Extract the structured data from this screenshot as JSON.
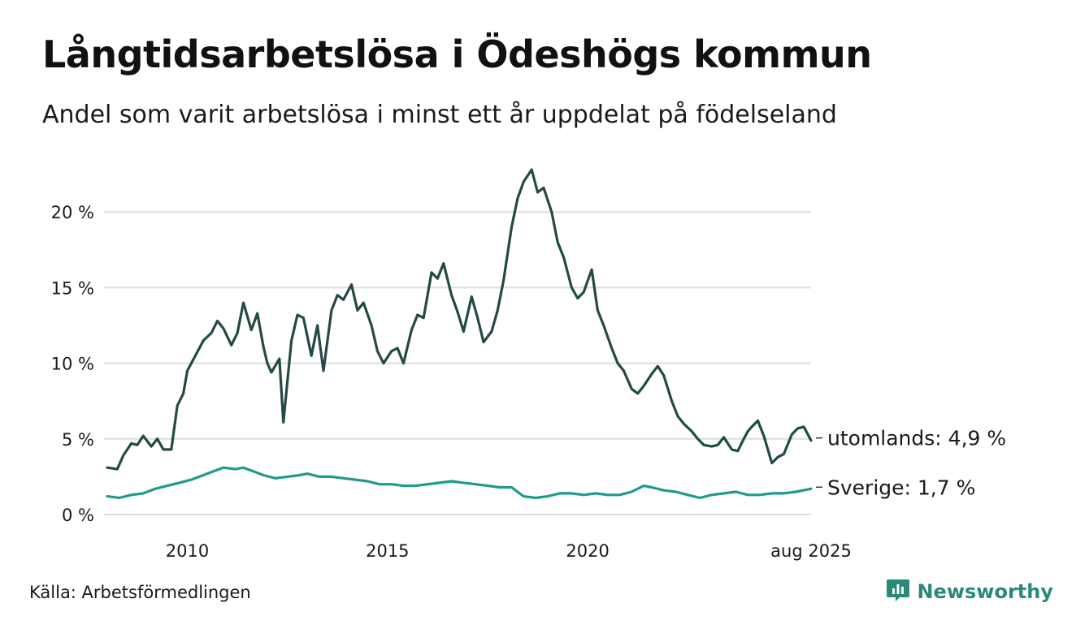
{
  "title": "Långtidsarbetslösa i Ödeshögs kommun",
  "subtitle": "Andel som varit arbetslösa i minst ett år uppdelat på födelseland",
  "source": "Källa: Arbetsförmedlingen",
  "brand": {
    "name": "Newsworthy",
    "icon": "newsworthy-logo-icon"
  },
  "colors": {
    "utomlands": "#234a45",
    "sverige": "#1f9a8c",
    "grid": "#dddddd"
  },
  "chart_data": {
    "type": "line",
    "title": "Långtidsarbetslösa i Ödeshögs kommun",
    "xlabel": "",
    "ylabel": "",
    "ylim": [
      0,
      23.5
    ],
    "xlim": [
      2008.0,
      2025.58
    ],
    "y_ticks": [
      {
        "value": 0,
        "label": "0 %"
      },
      {
        "value": 5,
        "label": "5 %"
      },
      {
        "value": 10,
        "label": "10 %"
      },
      {
        "value": 15,
        "label": "15 %"
      },
      {
        "value": 20,
        "label": "20 %"
      }
    ],
    "x_ticks": [
      {
        "value": 2010,
        "label": "2010"
      },
      {
        "value": 2015,
        "label": "2015"
      },
      {
        "value": 2020,
        "label": "2020"
      },
      {
        "value": 2025.58,
        "label": "aug 2025"
      }
    ],
    "grid": true,
    "series": [
      {
        "key": "utomlands",
        "end_label": "utomlands: 4,9 %",
        "x": [
          2008.0,
          2008.25,
          2008.4,
          2008.6,
          2008.75,
          2008.9,
          2009.1,
          2009.25,
          2009.4,
          2009.6,
          2009.75,
          2009.9,
          2010.0,
          2010.2,
          2010.4,
          2010.6,
          2010.75,
          2010.9,
          2011.1,
          2011.25,
          2011.4,
          2011.6,
          2011.75,
          2011.9,
          2012.0,
          2012.1,
          2012.3,
          2012.4,
          2012.6,
          2012.75,
          2012.9,
          2013.1,
          2013.25,
          2013.4,
          2013.6,
          2013.75,
          2013.9,
          2014.1,
          2014.25,
          2014.4,
          2014.6,
          2014.75,
          2014.9,
          2015.1,
          2015.25,
          2015.4,
          2015.6,
          2015.75,
          2015.9,
          2016.1,
          2016.25,
          2016.4,
          2016.6,
          2016.75,
          2016.9,
          2017.1,
          2017.25,
          2017.4,
          2017.6,
          2017.75,
          2017.9,
          2018.1,
          2018.25,
          2018.4,
          2018.6,
          2018.75,
          2018.9,
          2019.1,
          2019.25,
          2019.4,
          2019.6,
          2019.75,
          2019.9,
          2020.1,
          2020.25,
          2020.4,
          2020.6,
          2020.75,
          2020.9,
          2021.1,
          2021.25,
          2021.4,
          2021.6,
          2021.75,
          2021.9,
          2022.1,
          2022.25,
          2022.4,
          2022.6,
          2022.75,
          2022.9,
          2023.1,
          2023.25,
          2023.4,
          2023.6,
          2023.75,
          2023.9,
          2024.0,
          2024.1,
          2024.25,
          2024.4,
          2024.6,
          2024.75,
          2024.9,
          2025.1,
          2025.25,
          2025.4,
          2025.58
        ],
        "values": [
          3.1,
          3.0,
          3.9,
          4.7,
          4.6,
          5.2,
          4.5,
          5.0,
          4.3,
          4.3,
          7.2,
          8.0,
          9.5,
          10.5,
          11.5,
          12.0,
          12.8,
          12.3,
          11.2,
          12.0,
          14.0,
          12.2,
          13.3,
          11.1,
          10.0,
          9.4,
          10.3,
          6.1,
          11.5,
          13.2,
          13.0,
          10.5,
          12.5,
          9.5,
          13.5,
          14.5,
          14.2,
          15.2,
          13.5,
          14.0,
          12.5,
          10.8,
          10.0,
          10.8,
          11.0,
          10.0,
          12.2,
          13.2,
          13.0,
          16.0,
          15.6,
          16.6,
          14.5,
          13.4,
          12.1,
          14.4,
          13.0,
          11.4,
          12.1,
          13.5,
          15.5,
          19.0,
          20.9,
          22.0,
          22.8,
          21.3,
          21.6,
          20.0,
          18.0,
          17.0,
          15.0,
          14.3,
          14.7,
          16.2,
          13.5,
          12.5,
          11.0,
          10.0,
          9.5,
          8.3,
          8.0,
          8.5,
          9.3,
          9.8,
          9.2,
          7.5,
          6.5,
          6.0,
          5.5,
          5.0,
          4.6,
          4.5,
          4.6,
          5.1,
          4.3,
          4.2,
          5.0,
          5.5,
          5.8,
          6.2,
          5.2,
          3.4,
          3.8,
          4.0,
          5.3,
          5.7,
          5.8,
          4.9
        ]
      },
      {
        "key": "sverige",
        "end_label": "Sverige: 1,7 %",
        "x": [
          2008.0,
          2008.3,
          2008.6,
          2008.9,
          2009.2,
          2009.5,
          2009.8,
          2010.1,
          2010.4,
          2010.7,
          2010.9,
          2011.2,
          2011.4,
          2011.7,
          2011.9,
          2012.2,
          2012.5,
          2012.8,
          2013.0,
          2013.3,
          2013.6,
          2013.9,
          2014.2,
          2014.5,
          2014.8,
          2015.1,
          2015.4,
          2015.7,
          2016.0,
          2016.3,
          2016.6,
          2016.9,
          2017.2,
          2017.5,
          2017.8,
          2018.1,
          2018.4,
          2018.7,
          2019.0,
          2019.3,
          2019.6,
          2019.9,
          2020.2,
          2020.5,
          2020.8,
          2021.1,
          2021.4,
          2021.6,
          2021.9,
          2022.2,
          2022.5,
          2022.8,
          2023.1,
          2023.4,
          2023.7,
          2024.0,
          2024.3,
          2024.6,
          2024.9,
          2025.2,
          2025.58
        ],
        "values": [
          1.2,
          1.1,
          1.3,
          1.4,
          1.7,
          1.9,
          2.1,
          2.3,
          2.6,
          2.9,
          3.1,
          3.0,
          3.1,
          2.8,
          2.6,
          2.4,
          2.5,
          2.6,
          2.7,
          2.5,
          2.5,
          2.4,
          2.3,
          2.2,
          2.0,
          2.0,
          1.9,
          1.9,
          2.0,
          2.1,
          2.2,
          2.1,
          2.0,
          1.9,
          1.8,
          1.8,
          1.2,
          1.1,
          1.2,
          1.4,
          1.4,
          1.3,
          1.4,
          1.3,
          1.3,
          1.5,
          1.9,
          1.8,
          1.6,
          1.5,
          1.3,
          1.1,
          1.3,
          1.4,
          1.5,
          1.3,
          1.3,
          1.4,
          1.4,
          1.5,
          1.7
        ]
      }
    ]
  }
}
